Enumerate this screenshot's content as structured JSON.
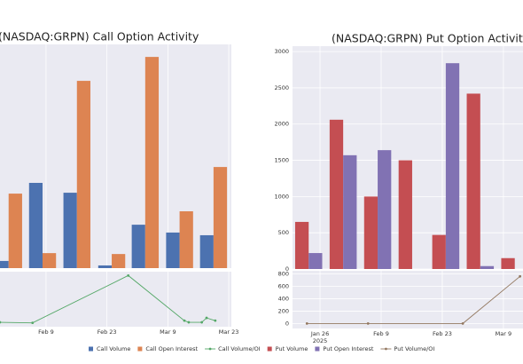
{
  "chart_data": [
    {
      "type": "bar",
      "title": "(NASDAQ:GRPN) Call Option Activity",
      "x": [
        31.4,
        39.2,
        47.1,
        55.1,
        62.8,
        70.7,
        78.5
      ],
      "series": [
        {
          "name": "Call Volume",
          "color": "#4c72b0",
          "values": [
            32,
            381,
            337,
            12,
            194,
            159,
            147
          ]
        },
        {
          "name": "Call Open Interest",
          "color": "#dd8452",
          "values": [
            333,
            67,
            837,
            63,
            944,
            254,
            452
          ]
        }
      ],
      "xlim": [
        28.4,
        82.6
      ],
      "ylim": [
        0,
        1000
      ],
      "grid": true
    },
    {
      "type": "line",
      "x": [
        29.4,
        36.9,
        58.9,
        71.8,
        72.8,
        75.8,
        76.9,
        78.9
      ],
      "series": [
        {
          "name": "Call Volume/OI",
          "color": "#55a868",
          "values": [
            0.08,
            0.07,
            0.93,
            0.11,
            0.08,
            0.08,
            0.16,
            0.11
          ]
        }
      ],
      "xlim": [
        28.4,
        82.6
      ],
      "ylim": [
        0,
        1
      ],
      "xticks": [
        {
          "value": 40,
          "label": "Feb 9"
        },
        {
          "value": 54,
          "label": "Feb 23"
        },
        {
          "value": 68,
          "label": "Mar 9"
        },
        {
          "value": 82,
          "label": "Mar 23"
        }
      ],
      "grid": true
    },
    {
      "type": "bar",
      "title": "(NASDAQ:GRPN) Put Option Activity",
      "x": [
        23.4,
        31.3,
        39.2,
        47.1,
        54.8,
        62.7,
        70.6
      ],
      "series": [
        {
          "name": "Put Volume",
          "color": "#c44e52",
          "values": [
            650,
            2060,
            1000,
            1500,
            470,
            2420,
            150
          ]
        },
        {
          "name": "Put Open Interest",
          "color": "#8172b3",
          "values": [
            220,
            1570,
            1640,
            0,
            2840,
            40,
            0
          ]
        }
      ],
      "xlim": [
        19.7,
        73.5
      ],
      "ylim": [
        0,
        3075
      ],
      "yticks": [
        0,
        500,
        1000,
        1500,
        2000,
        2500,
        3000
      ],
      "grid": true
    },
    {
      "type": "line",
      "x": [
        23,
        37,
        58.7,
        71.8
      ],
      "series": [
        {
          "name": "Put Volume/OI",
          "color": "#937860",
          "values": [
            0,
            0,
            0,
            760
          ]
        }
      ],
      "xlim": [
        19.7,
        73.5
      ],
      "ylim": [
        -80,
        850
      ],
      "yticks": [
        0,
        200,
        400,
        600,
        800
      ],
      "xticks": [
        {
          "value": 26,
          "label": "Jan 26\n2025"
        },
        {
          "value": 40,
          "label": "Feb 9"
        },
        {
          "value": 54,
          "label": "Feb 23"
        },
        {
          "value": 68,
          "label": "Mar 9"
        }
      ],
      "grid": true
    }
  ]
}
